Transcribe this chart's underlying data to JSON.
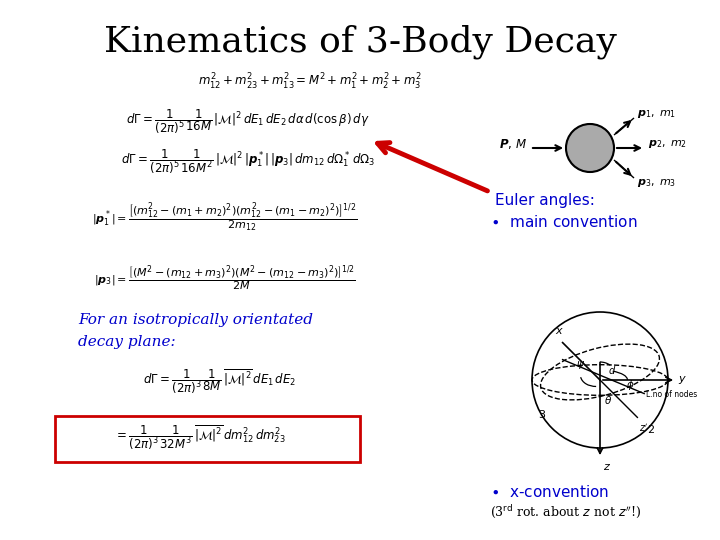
{
  "title": "Kinematics of 3-Body Decay",
  "title_fontsize": 26,
  "background_color": "#ffffff",
  "eq1": "$m_{12}^2 + m_{23}^2 + m_{13}^2 = M^2 + m_1^2 + m_2^2 + m_3^2$",
  "eq2": "$d\\Gamma = \\dfrac{1}{(2\\pi)^5}\\dfrac{1}{16M}\\,|\\mathcal{M}|^2\\,dE_1\\,dE_2\\,d\\alpha\\,d(\\cos\\beta)\\,d\\gamma$",
  "eq3": "$d\\Gamma = \\dfrac{1}{(2\\pi)^5}\\dfrac{1}{16M^2}\\,|\\mathcal{M}|^2\\,|\\boldsymbol{p}_1^*|\\,|\\boldsymbol{p}_3|\\,dm_{12}\\,d\\Omega_1^*\\,d\\Omega_3$",
  "eq4": "$|\\boldsymbol{p}_1^*| = \\dfrac{\\left[(m_{12}^2-(m_1+m_2)^2)(m_{12}^2-(m_1-m_2)^2)\\right]^{1/2}}{2m_{12}}$",
  "eq5": "$|\\boldsymbol{p}_3| = \\dfrac{\\left[(M^2-(m_{12}+m_3)^2)(M^2-(m_{12}-m_3)^2)\\right]^{1/2}}{2M}$",
  "eq6": "$d\\Gamma = \\dfrac{1}{(2\\pi)^3}\\dfrac{1}{8M}\\,\\overline{|\\mathcal{M}|^2}\\,dE_1\\,dE_2$",
  "eq7": "$= \\dfrac{1}{(2\\pi)^3}\\dfrac{1}{32M^3}\\,\\overline{|\\mathcal{M}|^2}\\,dm_{12}^2\\,dm_{23}^2$",
  "euler_text1": "Euler angles:",
  "euler_text2": "\\bullet  main convention",
  "euler_text3": "\\bullet  x-convention",
  "euler_text4": "(3$^{\\mathrm{rd}}$ rot. about $z$ not $z^{\\prime\\prime}$!)",
  "isotropic_line1": "For an isotropically orientated",
  "isotropic_line2": "decay plane:",
  "arrow_color": "#cc0000",
  "box_color": "#cc0000",
  "blue_text_color": "#0000cc",
  "black": "#000000",
  "gray": "#aaaaaa"
}
